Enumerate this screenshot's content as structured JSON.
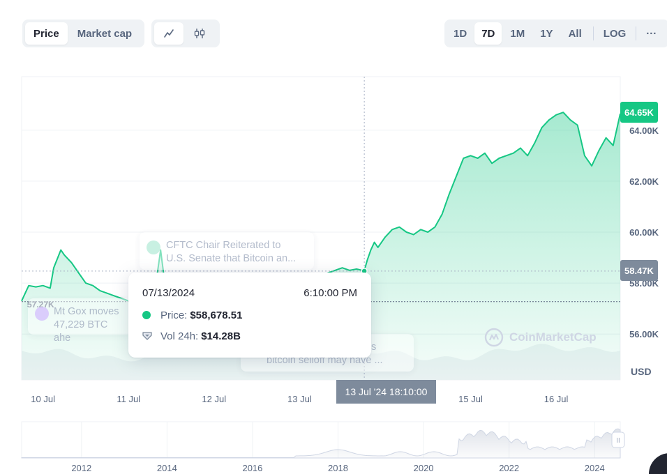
{
  "toolbar": {
    "type_options": [
      "Price",
      "Market cap"
    ],
    "active_type": "Price",
    "style_options": [
      "line-chart-icon",
      "candlestick-icon"
    ],
    "ranges": [
      "1D",
      "7D",
      "1M",
      "1Y",
      "All"
    ],
    "active_range": "7D",
    "log_label": "LOG",
    "more_label": "···"
  },
  "tooltip": {
    "date": "07/13/2024",
    "time": "6:10:00 PM",
    "price_label": "Price:",
    "price_value": "$58,678.51",
    "vol_label": "Vol 24h:",
    "vol_value": "$14.28B"
  },
  "news": [
    {
      "line1": "Mt Gox moves",
      "line2": "47,229 BTC ahe",
      "icon": "clock-icon"
    },
    {
      "line1": "CFTC Chair Reiterated to",
      "line2": "U.S. Senate that Bitcoin an...",
      "icon": "document-icon"
    },
    {
      "line1": "s",
      "line2": "bitcoin selloff may have ...",
      "icon": "news-icon"
    }
  ],
  "price_tags": {
    "current": "64.65K",
    "hover": "58.47K",
    "left_low": "57.27K"
  },
  "crosshair_x_label": "13 Jul '24 18:10:00",
  "watermark": "CoinMarketCap",
  "colors": {
    "accent": "#16c784",
    "crosshair_tag": "#7e8b9c",
    "text_muted": "#58667e"
  },
  "chart_data": {
    "type": "area",
    "title": "",
    "xlabel": "",
    "ylabel": "",
    "currency_label": "USD",
    "yticks": [
      56000,
      58000,
      60000,
      62000,
      64000
    ],
    "ytick_labels": [
      "56.00K",
      "58.00K",
      "60.00K",
      "62.00K",
      "64.00K"
    ],
    "ylim": [
      54200,
      66100
    ],
    "xlim": [
      "2024-07-09 18:00",
      "2024-07-16 18:00"
    ],
    "xticks": [
      "2024-07-10",
      "2024-07-11",
      "2024-07-12",
      "2024-07-13",
      "2024-07-14",
      "2024-07-15",
      "2024-07-16"
    ],
    "xtick_labels": [
      "10 Jul",
      "11 Jul",
      "12 Jul",
      "13 Jul",
      "14 Jul",
      "15 Jul",
      "16 Jul"
    ],
    "grid": true,
    "series": [
      {
        "x": [
          "2024-07-09 18:00",
          "2024-07-09 20:00",
          "2024-07-09 22:00",
          "2024-07-10 00:00",
          "2024-07-10 02:00",
          "2024-07-10 03:00",
          "2024-07-10 05:00",
          "2024-07-10 06:00",
          "2024-07-10 08:00",
          "2024-07-10 10:00",
          "2024-07-10 12:00",
          "2024-07-10 14:00",
          "2024-07-10 16:00",
          "2024-07-10 18:00",
          "2024-07-10 20:00",
          "2024-07-10 22:00",
          "2024-07-11 00:00",
          "2024-07-11 02:00",
          "2024-07-11 04:00",
          "2024-07-11 06:00",
          "2024-07-11 08:00",
          "2024-07-11 09:00",
          "2024-07-11 10:00",
          "2024-07-11 12:00",
          "2024-07-11 14:00",
          "2024-07-11 16:00",
          "2024-07-11 18:00",
          "2024-07-11 20:00",
          "2024-07-11 22:00",
          "2024-07-12 00:00",
          "2024-07-12 04:00",
          "2024-07-12 08:00",
          "2024-07-12 12:00",
          "2024-07-12 16:00",
          "2024-07-12 20:00",
          "2024-07-13 00:00",
          "2024-07-13 04:00",
          "2024-07-13 06:00",
          "2024-07-13 08:00",
          "2024-07-13 10:00",
          "2024-07-13 12:00",
          "2024-07-13 14:00",
          "2024-07-13 16:00",
          "2024-07-13 18:10",
          "2024-07-13 19:00",
          "2024-07-13 20:00",
          "2024-07-13 21:00",
          "2024-07-13 22:00",
          "2024-07-14 00:00",
          "2024-07-14 02:00",
          "2024-07-14 04:00",
          "2024-07-14 06:00",
          "2024-07-14 08:00",
          "2024-07-14 10:00",
          "2024-07-14 12:00",
          "2024-07-14 14:00",
          "2024-07-14 16:00",
          "2024-07-14 18:00",
          "2024-07-14 20:00",
          "2024-07-14 22:00",
          "2024-07-15 00:00",
          "2024-07-15 02:00",
          "2024-07-15 04:00",
          "2024-07-15 06:00",
          "2024-07-15 08:00",
          "2024-07-15 10:00",
          "2024-07-15 12:00",
          "2024-07-15 14:00",
          "2024-07-15 16:00",
          "2024-07-15 18:00",
          "2024-07-15 20:00",
          "2024-07-15 22:00",
          "2024-07-16 00:00",
          "2024-07-16 02:00",
          "2024-07-16 04:00",
          "2024-07-16 06:00",
          "2024-07-16 08:00",
          "2024-07-16 10:00",
          "2024-07-16 12:00",
          "2024-07-16 14:00",
          "2024-07-16 16:00",
          "2024-07-16 18:00"
        ],
        "values": [
          57300,
          57900,
          57850,
          57900,
          57800,
          58600,
          59300,
          59100,
          58800,
          58400,
          58000,
          57900,
          57700,
          57600,
          57500,
          57400,
          57300,
          57500,
          57700,
          57900,
          58300,
          59300,
          58200,
          57500,
          57300,
          57200,
          57300,
          57400,
          57300,
          57200,
          57300,
          57400,
          57500,
          57600,
          57800,
          58000,
          58100,
          58300,
          58400,
          58500,
          58600,
          58500,
          58550,
          58480,
          58900,
          59300,
          59600,
          59400,
          59800,
          60100,
          60200,
          60000,
          59900,
          60100,
          60000,
          60200,
          60700,
          61500,
          62200,
          62900,
          63000,
          62900,
          63100,
          62700,
          62900,
          63000,
          63100,
          63300,
          63000,
          63500,
          64100,
          64400,
          64600,
          64700,
          64400,
          64200,
          63000,
          62600,
          63200,
          63700,
          63400,
          64650
        ]
      }
    ],
    "current_price": 64650,
    "hover_price": 58470,
    "left_label_price": 57270
  },
  "navigator": {
    "year_labels": [
      "2012",
      "2014",
      "2016",
      "2018",
      "2020",
      "2022",
      "2024"
    ],
    "year_values": [
      2012,
      2014,
      2016,
      2018,
      2020,
      2022,
      2024
    ],
    "handle_label": "II"
  }
}
